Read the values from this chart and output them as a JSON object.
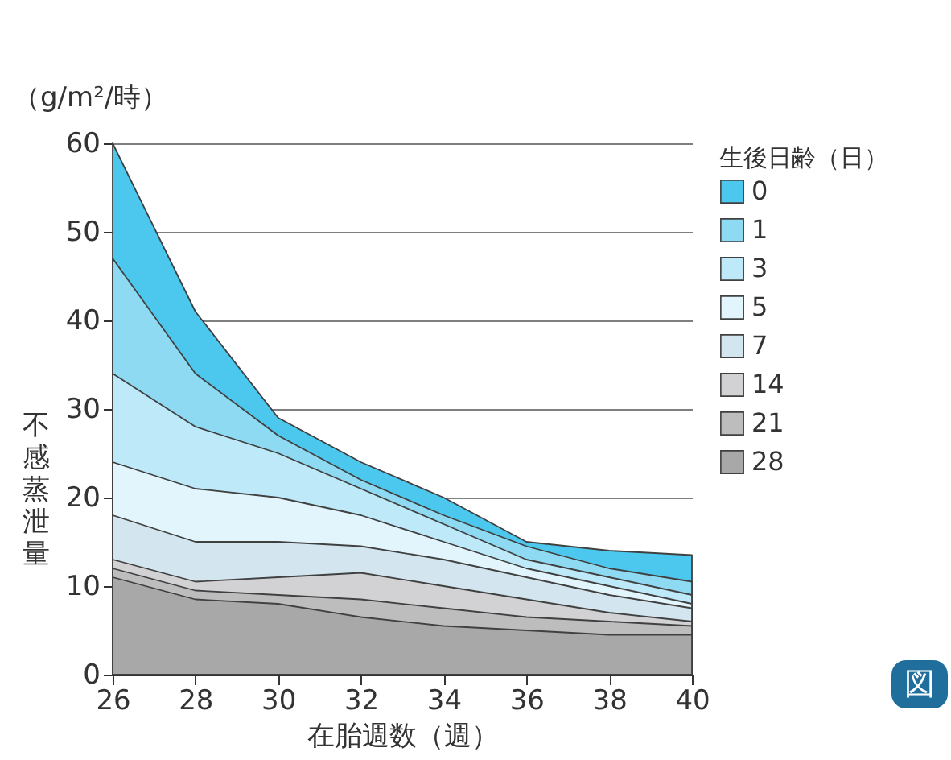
{
  "chart_data": {
    "type": "area",
    "xlabel": "在胎週数（週）",
    "ylabel": "不感蒸泄量",
    "legend_title": "生後日齢（日）",
    "annotations": [
      "（g/m²/時）",
      "図"
    ],
    "x": [
      26,
      28,
      30,
      32,
      34,
      36,
      38,
      40
    ],
    "xlim": [
      26,
      40
    ],
    "xticks": [
      26,
      28,
      30,
      32,
      34,
      36,
      38,
      40
    ],
    "ylim": [
      0,
      60
    ],
    "yticks": [
      0,
      10,
      20,
      30,
      40,
      50,
      60
    ],
    "grid": "y",
    "legend": "right",
    "series": [
      {
        "name": "0",
        "color": "#4cc8ee",
        "values": [
          60,
          41,
          29,
          24,
          20,
          15,
          14,
          13.5
        ]
      },
      {
        "name": "1",
        "color": "#8fdaf3",
        "values": [
          47,
          34,
          27,
          22,
          18,
          14.5,
          12,
          10.5
        ]
      },
      {
        "name": "3",
        "color": "#bde9f8",
        "values": [
          34,
          28,
          25,
          21,
          17,
          13,
          11,
          9
        ]
      },
      {
        "name": "5",
        "color": "#e3f5fc",
        "values": [
          24,
          21,
          20,
          18,
          15,
          12,
          10,
          8
        ]
      },
      {
        "name": "7",
        "color": "#d3e6ef",
        "values": [
          18,
          15,
          15,
          14.5,
          13,
          11,
          9,
          7.5
        ]
      },
      {
        "name": "14",
        "color": "#d2d2d4",
        "values": [
          13,
          10.5,
          11,
          11.5,
          10,
          8.5,
          7,
          6
        ]
      },
      {
        "name": "21",
        "color": "#bdbdbd",
        "values": [
          12,
          9.5,
          9,
          8.5,
          7.5,
          6.5,
          6,
          5.5
        ]
      },
      {
        "name": "28",
        "color": "#a8a8a8",
        "values": [
          11,
          8.5,
          8,
          6.5,
          5.5,
          5,
          4.5,
          4.5
        ]
      }
    ]
  }
}
